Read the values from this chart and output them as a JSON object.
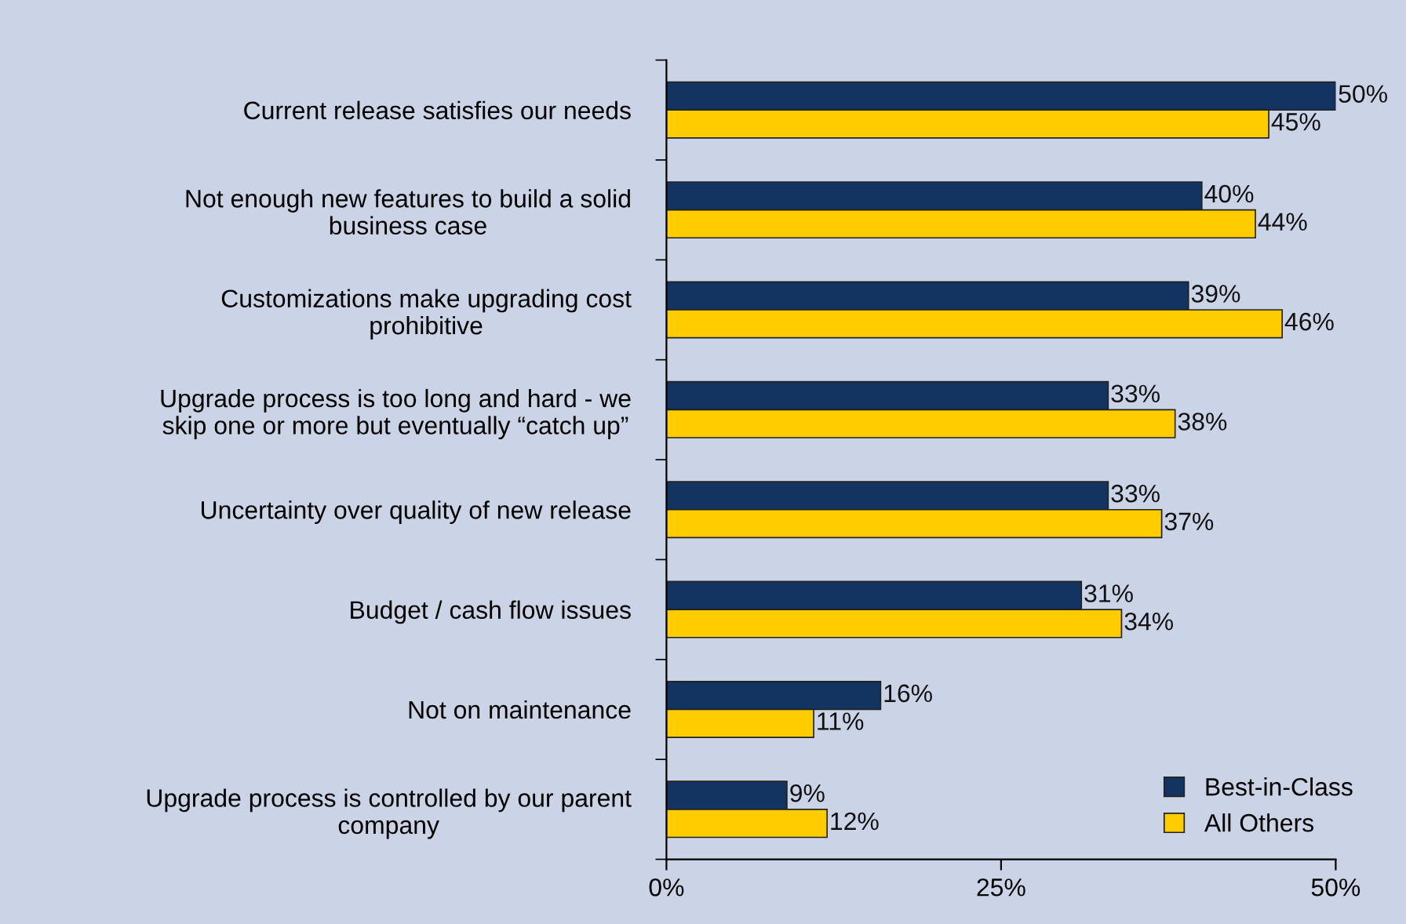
{
  "chart_data": {
    "type": "bar",
    "orientation": "horizontal",
    "categories": [
      "Current release satisfies our needs",
      "Not enough new features to build a solid\nbusiness case",
      "Customizations make upgrading cost\nprohibitive",
      "Upgrade process is too long and hard - we\nskip one or more but eventually “catch up”",
      "Uncertainty over quality of new release",
      "Budget / cash flow issues",
      "Not on maintenance",
      "Upgrade process is controlled by our parent\ncompany"
    ],
    "series": [
      {
        "name": "Best-in-Class",
        "color": "#133461",
        "values": [
          50,
          40,
          39,
          33,
          33,
          31,
          16,
          9
        ],
        "value_labels": [
          "50%",
          "40%",
          "39%",
          "33%",
          "33%",
          "31%",
          "16%",
          "9%"
        ]
      },
      {
        "name": "All Others",
        "color": "#ffcc00",
        "values": [
          45,
          44,
          46,
          38,
          37,
          34,
          11,
          12
        ],
        "value_labels": [
          "45%",
          "44%",
          "46%",
          "38%",
          "37%",
          "34%",
          "11%",
          "12%"
        ]
      }
    ],
    "xlim": [
      0,
      50
    ],
    "xticks": [
      {
        "value": 0,
        "label": "0%"
      },
      {
        "value": 25,
        "label": "25%"
      },
      {
        "value": 50,
        "label": "50%"
      }
    ],
    "legend": "bottom right",
    "grid": false
  }
}
